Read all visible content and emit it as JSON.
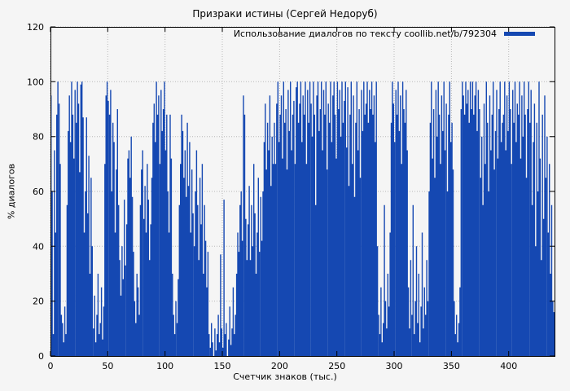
{
  "chart_data": {
    "type": "bar",
    "title": "Призраки истины (Сергей Недоруб)",
    "legend_label": "Использование диалогов по тексту coollib.net/b/792304",
    "xlabel": "Счетчик знаков (тыс.)",
    "ylabel": "% диалогов",
    "xlim": [
      0,
      440
    ],
    "ylim": [
      0,
      120
    ],
    "x_ticks": [
      0,
      50,
      100,
      150,
      200,
      250,
      300,
      350,
      400
    ],
    "y_ticks": [
      0,
      20,
      40,
      60,
      80,
      100,
      120
    ],
    "grid": true,
    "legend_position": "top-right",
    "bar_color": "#1548b2",
    "bg_color": "#f5f5f5",
    "values": [
      95,
      60,
      8,
      75,
      45,
      88,
      100,
      92,
      70,
      15,
      12,
      5,
      18,
      8,
      55,
      82,
      95,
      78,
      100,
      88,
      72,
      97,
      85,
      100,
      92,
      67,
      99,
      100,
      87,
      45,
      60,
      87,
      52,
      73,
      30,
      65,
      40,
      10,
      22,
      5,
      15,
      30,
      8,
      12,
      25,
      6,
      18,
      70,
      95,
      100,
      93,
      88,
      97,
      60,
      85,
      78,
      45,
      68,
      90,
      55,
      35,
      22,
      40,
      28,
      57,
      33,
      48,
      72,
      75,
      65,
      80,
      58,
      38,
      20,
      12,
      30,
      25,
      15,
      55,
      68,
      75,
      50,
      62,
      45,
      70,
      57,
      35,
      48,
      65,
      85,
      92,
      78,
      100,
      88,
      95,
      70,
      97,
      82,
      90,
      100,
      75,
      88,
      60,
      45,
      88,
      72,
      30,
      15,
      8,
      20,
      12,
      28,
      55,
      70,
      88,
      82,
      65,
      75,
      58,
      85,
      62,
      78,
      45,
      68,
      52,
      40,
      60,
      75,
      55,
      35,
      65,
      48,
      70,
      30,
      55,
      42,
      25,
      38,
      8,
      3,
      12,
      5,
      0,
      10,
      2,
      8,
      15,
      5,
      37,
      10,
      3,
      57,
      8,
      12,
      0,
      6,
      18,
      4,
      10,
      25,
      8,
      15,
      30,
      45,
      38,
      55,
      60,
      42,
      95,
      88,
      50,
      35,
      48,
      62,
      35,
      55,
      40,
      70,
      52,
      30,
      45,
      65,
      38,
      58,
      42,
      60,
      78,
      92,
      68,
      85,
      75,
      95,
      62,
      80,
      70,
      85,
      70,
      92,
      100,
      78,
      88,
      95,
      72,
      100,
      85,
      90,
      68,
      97,
      82,
      100,
      75,
      88,
      93,
      70,
      98,
      100,
      85,
      92,
      100,
      78,
      95,
      88,
      100,
      70,
      97,
      85,
      100,
      92,
      80,
      100,
      88,
      55,
      95,
      100,
      82,
      90,
      100,
      75,
      97,
      88,
      100,
      68,
      92,
      85,
      100,
      78,
      95,
      100,
      88,
      72,
      100,
      90,
      97,
      80,
      100,
      85,
      93,
      100,
      76,
      98,
      62,
      88,
      100,
      70,
      95,
      58,
      85,
      100,
      75,
      90,
      65,
      97,
      82,
      100,
      88,
      92,
      100,
      85,
      97,
      90,
      100,
      88,
      95,
      78,
      100,
      40,
      15,
      8,
      25,
      5,
      12,
      55,
      20,
      10,
      30,
      18,
      45,
      85,
      100,
      92,
      78,
      97,
      88,
      100,
      82,
      95,
      70,
      100,
      90,
      85,
      97,
      75,
      25,
      10,
      35,
      15,
      55,
      8,
      20,
      40,
      12,
      30,
      5,
      18,
      45,
      10,
      25,
      15,
      35,
      20,
      60,
      85,
      100,
      72,
      90,
      65,
      97,
      80,
      100,
      88,
      70,
      95,
      82,
      100,
      75,
      92,
      60,
      88,
      100,
      78,
      85,
      68,
      20,
      8,
      15,
      5,
      12,
      25,
      90,
      100,
      95,
      88,
      100,
      92,
      97,
      85,
      100,
      90,
      100,
      88,
      95,
      100,
      82,
      97,
      90,
      65,
      80,
      55,
      92,
      70,
      100,
      85,
      60,
      95,
      75,
      88,
      100,
      68,
      82,
      97,
      72,
      90,
      100,
      78,
      85,
      88,
      100,
      75,
      95,
      82,
      100,
      90,
      70,
      97,
      85,
      100,
      78,
      92,
      88,
      100,
      72,
      95,
      80,
      100,
      88,
      65,
      90,
      100,
      85,
      97,
      55,
      78,
      92,
      40,
      85,
      60,
      100,
      72,
      35,
      88,
      50,
      95,
      65,
      80,
      45,
      70,
      30,
      55,
      20,
      16
    ]
  }
}
